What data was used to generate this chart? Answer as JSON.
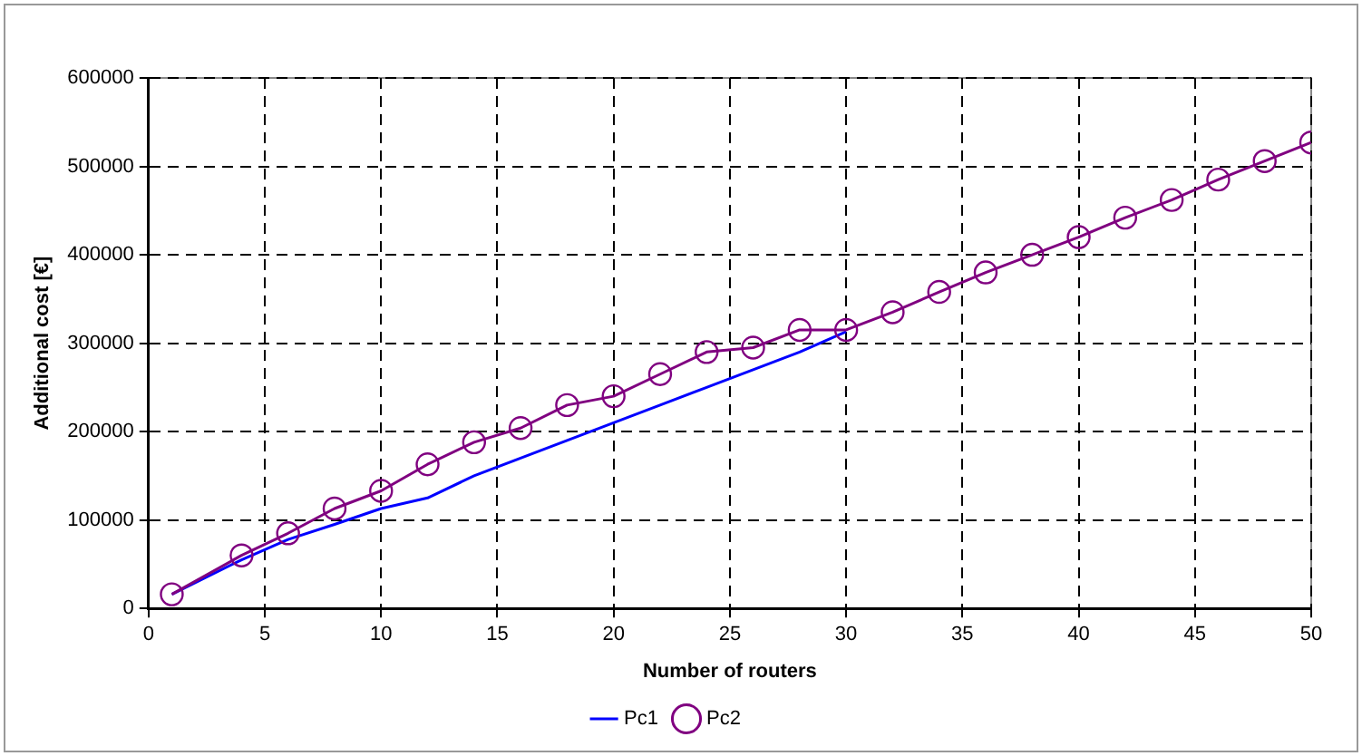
{
  "chart_data": {
    "type": "line",
    "xlabel": "Number of routers",
    "ylabel": "Additional cost [€]",
    "x": [
      1,
      4,
      6,
      8,
      10,
      12,
      14,
      16,
      18,
      20,
      22,
      24,
      26,
      28,
      30,
      32,
      34,
      36,
      38,
      40,
      42,
      44,
      46,
      48,
      50
    ],
    "series": [
      {
        "name": "Pc1",
        "color": "#0000ff",
        "marker": "none",
        "values": [
          16000,
          55000,
          78000,
          95000,
          113000,
          125000,
          150000,
          170000,
          190000,
          210000,
          230000,
          250000,
          270000,
          290000,
          313000,
          null,
          null,
          null,
          null,
          null,
          null,
          null,
          null,
          null,
          null
        ]
      },
      {
        "name": "Pc2",
        "color": "#800080",
        "marker": "circle",
        "values": [
          16000,
          60000,
          85000,
          113000,
          133000,
          163000,
          188000,
          204000,
          230000,
          240000,
          265000,
          290000,
          295000,
          315000,
          315000,
          335000,
          358000,
          380000,
          400000,
          420000,
          442000,
          462000,
          485000,
          506000,
          527000
        ]
      }
    ],
    "xlim": [
      0,
      50
    ],
    "xticks": [
      0,
      5,
      10,
      15,
      20,
      25,
      30,
      35,
      40,
      45,
      50
    ],
    "ylim": [
      0,
      600000
    ],
    "yticks": [
      0,
      100000,
      200000,
      300000,
      400000,
      500000,
      600000
    ],
    "grid": true,
    "legend": "bottom",
    "line_style": "solid"
  }
}
